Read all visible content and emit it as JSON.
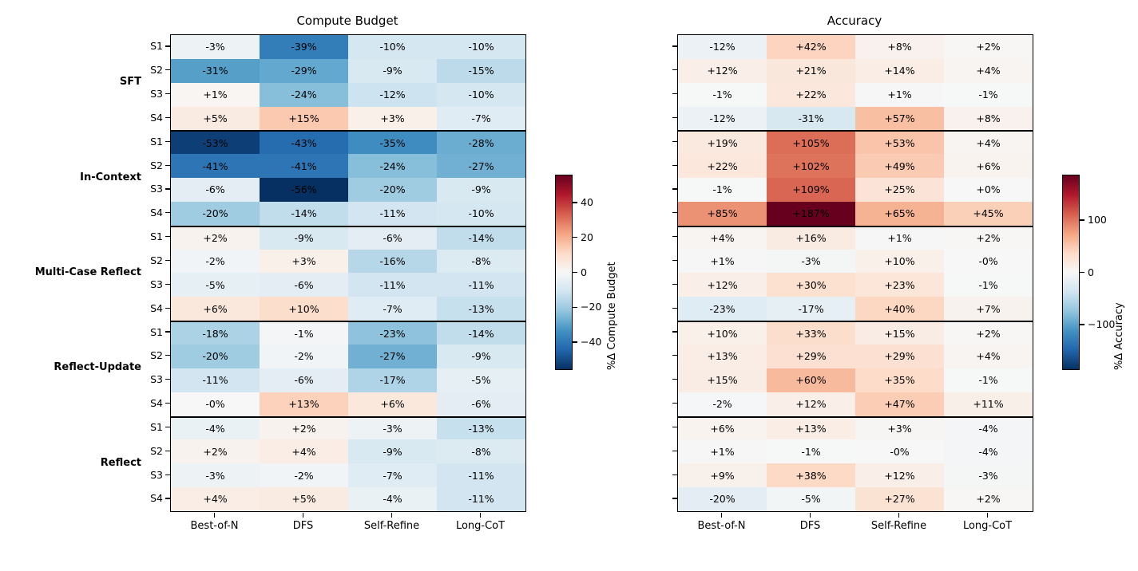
{
  "chart_data": [
    {
      "type": "heatmap",
      "title": "Compute Budget",
      "columns": [
        "Best-of-N",
        "DFS",
        "Self-Refine",
        "Long-CoT"
      ],
      "row_groups": [
        {
          "label": "SFT",
          "rows": [
            "S1",
            "S2",
            "S3",
            "S4"
          ]
        },
        {
          "label": "In-Context",
          "rows": [
            "S1",
            "S2",
            "S3",
            "S4"
          ]
        },
        {
          "label": "Multi-Case Reflect",
          "rows": [
            "S1",
            "S2",
            "S3",
            "S4"
          ]
        },
        {
          "label": "Reflect-Update",
          "rows": [
            "S1",
            "S2",
            "S3",
            "S4"
          ]
        },
        {
          "label": "Reflect",
          "rows": [
            "S1",
            "S2",
            "S3",
            "S4"
          ]
        }
      ],
      "show_row_labels": true,
      "cells": [
        [
          "-3%",
          "-39%",
          "-10%",
          "-10%"
        ],
        [
          "-31%",
          "-29%",
          "-9%",
          "-15%"
        ],
        [
          "+1%",
          "-24%",
          "-12%",
          "-10%"
        ],
        [
          "+5%",
          "+15%",
          "+3%",
          "-7%"
        ],
        [
          "-53%",
          "-43%",
          "-35%",
          "-28%"
        ],
        [
          "-41%",
          "-41%",
          "-24%",
          "-27%"
        ],
        [
          "-6%",
          "-56%",
          "-20%",
          "-9%"
        ],
        [
          "-20%",
          "-14%",
          "-11%",
          "-10%"
        ],
        [
          "+2%",
          "-9%",
          "-6%",
          "-14%"
        ],
        [
          "-2%",
          "+3%",
          "-16%",
          "-8%"
        ],
        [
          "-5%",
          "-6%",
          "-11%",
          "-11%"
        ],
        [
          "+6%",
          "+10%",
          "-7%",
          "-13%"
        ],
        [
          "-18%",
          "-1%",
          "-23%",
          "-14%"
        ],
        [
          "-20%",
          "-2%",
          "-27%",
          "-9%"
        ],
        [
          "-11%",
          "-6%",
          "-17%",
          "-5%"
        ],
        [
          "-0%",
          "+13%",
          "+6%",
          "-6%"
        ],
        [
          "-4%",
          "+2%",
          "-3%",
          "-13%"
        ],
        [
          "+2%",
          "+4%",
          "-9%",
          "-8%"
        ],
        [
          "-3%",
          "-2%",
          "-7%",
          "-11%"
        ],
        [
          "+4%",
          "+5%",
          "-4%",
          "-11%"
        ]
      ],
      "colorbar": {
        "label": "%Δ Compute Budget",
        "vmin": -56,
        "vmax": 56,
        "ticks": [
          {
            "value": 40,
            "label": "40"
          },
          {
            "value": 20,
            "label": "20"
          },
          {
            "value": 0,
            "label": "0"
          },
          {
            "value": -20,
            "label": "−20"
          },
          {
            "value": -40,
            "label": "−40"
          }
        ]
      }
    },
    {
      "type": "heatmap",
      "title": "Accuracy",
      "columns": [
        "Best-of-N",
        "DFS",
        "Self-Refine",
        "Long-CoT"
      ],
      "row_groups": [
        {
          "label": "SFT",
          "rows": [
            "S1",
            "S2",
            "S3",
            "S4"
          ]
        },
        {
          "label": "In-Context",
          "rows": [
            "S1",
            "S2",
            "S3",
            "S4"
          ]
        },
        {
          "label": "Multi-Case Reflect",
          "rows": [
            "S1",
            "S2",
            "S3",
            "S4"
          ]
        },
        {
          "label": "Reflect-Update",
          "rows": [
            "S1",
            "S2",
            "S3",
            "S4"
          ]
        },
        {
          "label": "Reflect",
          "rows": [
            "S1",
            "S2",
            "S3",
            "S4"
          ]
        }
      ],
      "show_row_labels": false,
      "cells": [
        [
          "-12%",
          "+42%",
          "+8%",
          "+2%"
        ],
        [
          "+12%",
          "+21%",
          "+14%",
          "+4%"
        ],
        [
          "-1%",
          "+22%",
          "+1%",
          "-1%"
        ],
        [
          "-12%",
          "-31%",
          "+57%",
          "+8%"
        ],
        [
          "+19%",
          "+105%",
          "+53%",
          "+4%"
        ],
        [
          "+22%",
          "+102%",
          "+49%",
          "+6%"
        ],
        [
          "-1%",
          "+109%",
          "+25%",
          "+0%"
        ],
        [
          "+85%",
          "+187%",
          "+65%",
          "+45%"
        ],
        [
          "+4%",
          "+16%",
          "+1%",
          "+2%"
        ],
        [
          "+1%",
          "-3%",
          "+10%",
          "-0%"
        ],
        [
          "+12%",
          "+30%",
          "+23%",
          "-1%"
        ],
        [
          "-23%",
          "-17%",
          "+40%",
          "+7%"
        ],
        [
          "+10%",
          "+33%",
          "+15%",
          "+2%"
        ],
        [
          "+13%",
          "+29%",
          "+29%",
          "+4%"
        ],
        [
          "+15%",
          "+60%",
          "+35%",
          "-1%"
        ],
        [
          "-2%",
          "+12%",
          "+47%",
          "+11%"
        ],
        [
          "+6%",
          "+13%",
          "+3%",
          "-4%"
        ],
        [
          "+1%",
          "-1%",
          "-0%",
          "-4%"
        ],
        [
          "+9%",
          "+38%",
          "+12%",
          "-3%"
        ],
        [
          "-20%",
          "-5%",
          "+27%",
          "+2%"
        ]
      ],
      "colorbar": {
        "label": "%Δ Accuracy",
        "vmin": -187,
        "vmax": 187,
        "ticks": [
          {
            "value": 100,
            "label": "100"
          },
          {
            "value": 0,
            "label": "0"
          },
          {
            "value": -100,
            "label": "−100"
          }
        ]
      }
    }
  ]
}
